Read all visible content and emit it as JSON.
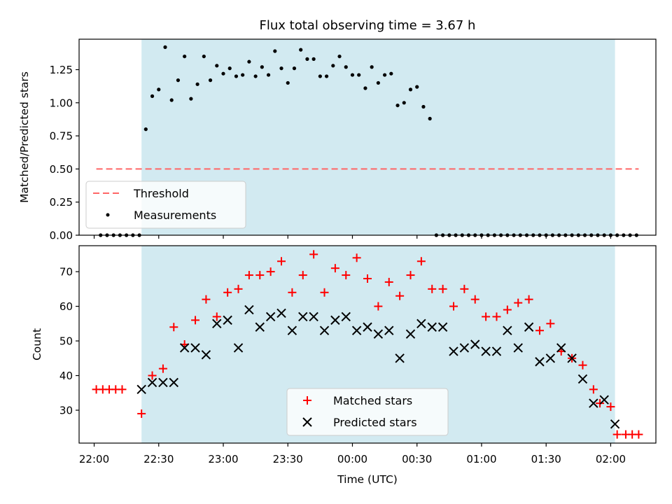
{
  "figure": {
    "title": "Flux total observing time = 3.67 h"
  },
  "colors": {
    "shade": "#add8e6",
    "threshold": "#ff6666",
    "matched": "#ff0000",
    "predicted": "#000000",
    "measurement": "#000000"
  },
  "chart_data": [
    {
      "type": "scatter",
      "panel": "top",
      "ylabel": "Matched/Predicted stars",
      "ylim": [
        0,
        1.48
      ],
      "yticks": [
        0.0,
        0.25,
        0.5,
        0.75,
        1.0,
        1.25
      ],
      "ytick_labels": [
        "0.00",
        "0.25",
        "0.50",
        "0.75",
        "1.00",
        "1.25"
      ],
      "threshold": {
        "name": "Threshold",
        "value": 0.5,
        "x_start": "22:01",
        "x_end": "02:13"
      },
      "legend": {
        "placement": "lower-left",
        "entries": [
          "Threshold",
          "Measurements"
        ]
      },
      "shaded_interval": [
        "22:22",
        "02:02"
      ],
      "series": [
        {
          "name": "Measurements",
          "x": [
            "22:03",
            "22:06",
            "22:09",
            "22:12",
            "22:15",
            "22:18",
            "22:21",
            "22:24",
            "22:27",
            "22:30",
            "22:33",
            "22:36",
            "22:39",
            "22:42",
            "22:45",
            "22:48",
            "22:51",
            "22:54",
            "22:57",
            "23:00",
            "23:03",
            "23:06",
            "23:09",
            "23:12",
            "23:15",
            "23:18",
            "23:21",
            "23:24",
            "23:27",
            "23:30",
            "23:33",
            "23:36",
            "23:39",
            "23:42",
            "23:45",
            "23:48",
            "23:51",
            "23:54",
            "23:57",
            "00:00",
            "00:03",
            "00:06",
            "00:09",
            "00:12",
            "00:15",
            "00:18",
            "00:21",
            "00:24",
            "00:27",
            "00:30",
            "00:33",
            "00:36",
            "00:39",
            "00:42",
            "00:45",
            "00:48",
            "00:51",
            "00:54",
            "00:57",
            "01:00",
            "01:03",
            "01:06",
            "01:09",
            "01:12",
            "01:15",
            "01:18",
            "01:21",
            "01:24",
            "01:27",
            "01:30",
            "01:33",
            "01:36",
            "01:39",
            "01:42",
            "01:45",
            "01:48",
            "01:51",
            "01:54",
            "01:57",
            "02:00",
            "02:03",
            "02:06",
            "02:09",
            "02:12"
          ],
          "y": [
            0,
            0,
            0,
            0,
            0,
            0,
            0,
            0.8,
            1.05,
            1.1,
            1.42,
            1.02,
            1.17,
            1.35,
            1.03,
            1.14,
            1.35,
            1.17,
            1.28,
            1.22,
            1.26,
            1.2,
            1.21,
            1.31,
            1.2,
            1.27,
            1.21,
            1.39,
            1.26,
            1.15,
            1.26,
            1.4,
            1.33,
            1.33,
            1.2,
            1.2,
            1.28,
            1.35,
            1.27,
            1.21,
            1.21,
            1.11,
            1.27,
            1.15,
            1.21,
            1.22,
            0.98,
            1.0,
            1.1,
            1.12,
            0.97,
            0.88,
            0,
            0,
            0,
            0,
            0,
            0,
            0,
            0,
            0,
            0,
            0,
            0,
            0,
            0,
            0,
            0,
            0,
            0,
            0,
            0,
            0,
            0,
            0,
            0,
            0,
            0,
            0,
            0,
            0,
            0,
            0,
            0
          ]
        }
      ]
    },
    {
      "type": "scatter",
      "panel": "bottom",
      "xlabel": "Time (UTC)",
      "ylabel": "Count",
      "ylim": [
        20.5,
        77.5
      ],
      "yticks": [
        30,
        40,
        50,
        60,
        70
      ],
      "ytick_labels": [
        "30",
        "40",
        "50",
        "60",
        "70"
      ],
      "xlim": [
        "21:53",
        "02:21"
      ],
      "xticks": [
        "22:00",
        "22:30",
        "23:00",
        "23:30",
        "00:00",
        "00:30",
        "01:00",
        "01:30",
        "02:00"
      ],
      "legend": {
        "placement": "lower-center",
        "entries": [
          "Matched stars",
          "Predicted stars"
        ]
      },
      "shaded_interval": [
        "22:22",
        "02:02"
      ],
      "series": [
        {
          "name": "Matched stars",
          "marker": "plus",
          "x": [
            "22:01",
            "22:04",
            "22:07",
            "22:10",
            "22:13",
            "22:22",
            "22:27",
            "22:32",
            "22:37",
            "22:42",
            "22:47",
            "22:52",
            "22:57",
            "23:02",
            "23:07",
            "23:12",
            "23:17",
            "23:22",
            "23:27",
            "23:32",
            "23:37",
            "23:42",
            "23:47",
            "23:52",
            "23:57",
            "00:02",
            "00:07",
            "00:12",
            "00:17",
            "00:22",
            "00:27",
            "00:32",
            "00:37",
            "00:42",
            "00:47",
            "00:52",
            "00:57",
            "01:02",
            "01:07",
            "01:12",
            "01:17",
            "01:22",
            "01:27",
            "01:32",
            "01:37",
            "01:42",
            "01:47",
            "01:52",
            "01:55",
            "02:00",
            "02:03",
            "02:07",
            "02:10",
            "02:13"
          ],
          "y": [
            36,
            36,
            36,
            36,
            36,
            29,
            40,
            42,
            54,
            49,
            56,
            62,
            57,
            64,
            65,
            69,
            69,
            70,
            73,
            64,
            69,
            75,
            64,
            71,
            69,
            74,
            68,
            60,
            67,
            63,
            69,
            73,
            65,
            65,
            60,
            65,
            62,
            57,
            57,
            59,
            61,
            62,
            53,
            55,
            47,
            45,
            43,
            36,
            32,
            31,
            23,
            23,
            23,
            23
          ]
        },
        {
          "name": "Predicted stars",
          "marker": "x",
          "x": [
            "22:22",
            "22:27",
            "22:32",
            "22:37",
            "22:42",
            "22:47",
            "22:52",
            "22:57",
            "23:02",
            "23:07",
            "23:12",
            "23:17",
            "23:22",
            "23:27",
            "23:32",
            "23:37",
            "23:42",
            "23:47",
            "23:52",
            "23:57",
            "00:02",
            "00:07",
            "00:12",
            "00:17",
            "00:22",
            "00:27",
            "00:32",
            "00:37",
            "00:42",
            "00:47",
            "00:52",
            "00:57",
            "01:02",
            "01:07",
            "01:12",
            "01:17",
            "01:22",
            "01:27",
            "01:32",
            "01:37",
            "01:42",
            "01:47",
            "01:52",
            "01:57",
            "02:02"
          ],
          "y": [
            36,
            38,
            38,
            38,
            48,
            48,
            46,
            55,
            56,
            48,
            59,
            54,
            57,
            58,
            53,
            57,
            57,
            53,
            56,
            57,
            53,
            54,
            52,
            53,
            45,
            52,
            55,
            54,
            54,
            47,
            48,
            49,
            47,
            47,
            53,
            48,
            54,
            44,
            45,
            48,
            45,
            39,
            32,
            33,
            26
          ]
        }
      ]
    }
  ]
}
